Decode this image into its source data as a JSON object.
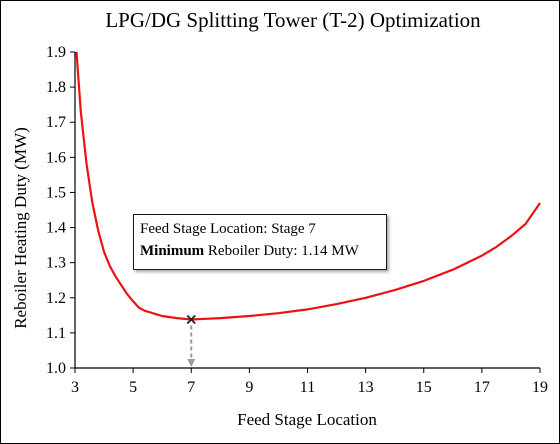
{
  "chart_data": {
    "type": "line",
    "title": "LPG/DG Splitting Tower (T-2) Optimization",
    "xlabel": "Feed Stage Location",
    "ylabel": "Reboiler Heating Duty (MW)",
    "xlim": [
      3,
      19
    ],
    "ylim": [
      1.0,
      1.9
    ],
    "xticks": [
      "3",
      "5",
      "7",
      "9",
      "11",
      "13",
      "15",
      "17",
      "19"
    ],
    "yticks": [
      "1.0",
      "1.1",
      "1.2",
      "1.3",
      "1.4",
      "1.5",
      "1.6",
      "1.7",
      "1.8",
      "1.9"
    ],
    "grid": false,
    "series": [
      {
        "color": "#ee1111",
        "x": [
          3.05,
          3.2,
          3.4,
          3.6,
          3.8,
          4.0,
          4.2,
          4.4,
          4.6,
          4.8,
          5.0,
          5.2,
          5.4,
          5.6,
          5.8,
          6.0,
          6.5,
          7.0,
          7.5,
          8.0,
          9.0,
          10.0,
          11.0,
          12.0,
          13.0,
          14.0,
          15.0,
          16.0,
          17.0,
          17.5,
          18.0,
          18.5,
          19.0
        ],
        "y": [
          1.9,
          1.73,
          1.58,
          1.47,
          1.39,
          1.33,
          1.29,
          1.26,
          1.235,
          1.21,
          1.19,
          1.172,
          1.163,
          1.158,
          1.153,
          1.148,
          1.142,
          1.138,
          1.14,
          1.142,
          1.148,
          1.156,
          1.167,
          1.182,
          1.2,
          1.222,
          1.248,
          1.28,
          1.32,
          1.345,
          1.375,
          1.41,
          1.47
        ]
      }
    ],
    "annotation": {
      "line1": "Feed Stage Location: Stage 7",
      "line2_bold": "Minimum",
      "line2_rest": " Reboiler Duty: 1.14 MW",
      "point": {
        "x": 7,
        "y": 1.138
      }
    }
  }
}
